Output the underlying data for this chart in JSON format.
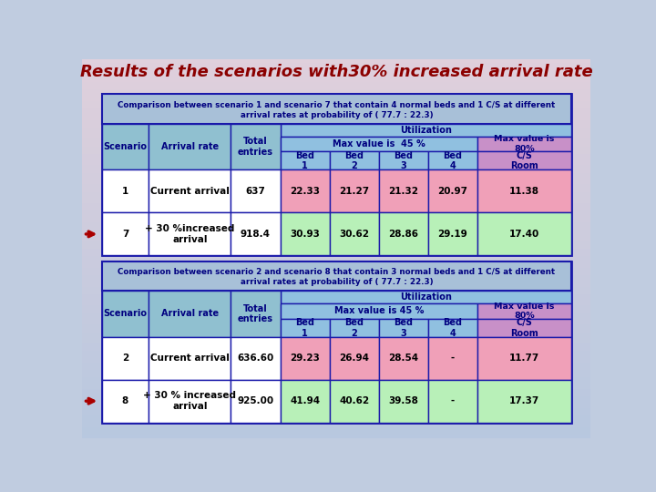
{
  "title": "Results of the scenarios with30% increased arrival rate",
  "title_color": "#8B0000",
  "bg_color_top": "#C8D8E8",
  "bg_color_bot": "#C0C8E0",
  "table1": {
    "header_line1": "Comparison between scenario 1 and scenario 7 that contain 4 normal beds and 1 C/S at different",
    "header_line2": "arrival rates at probability of ( 77.7 : 22.3)",
    "util_header": "Utilization",
    "max45_header": "Max value is  45 %",
    "max80_header": "Max value is\n80%",
    "rows": [
      {
        "scenario": "1",
        "arrival": "Current arrival",
        "total": "637",
        "bed1": "22.33",
        "bed2": "21.27",
        "bed3": "21.32",
        "bed4": "20.97",
        "cs": "11.38",
        "arrow": false,
        "row_type": "pink"
      },
      {
        "scenario": "7",
        "arrival": "+ 30 %increased\narrival",
        "total": "918.4",
        "bed1": "30.93",
        "bed2": "30.62",
        "bed3": "28.86",
        "bed4": "29.19",
        "cs": "17.40",
        "arrow": true,
        "row_type": "green"
      }
    ]
  },
  "table2": {
    "header_line1": "Comparison between scenario 2 and scenario 8 that contain 3 normal beds and 1 C/S at different",
    "header_line2": "arrival rates at probability of ( 77.7 : 22.3)",
    "util_header": "Utilization",
    "max45_header": "Max value is 45 %",
    "max80_header": "Max value is\n80%",
    "rows": [
      {
        "scenario": "2",
        "arrival": "Current arrival",
        "total": "636.60",
        "bed1": "29.23",
        "bed2": "26.94",
        "bed3": "28.54",
        "bed4": "-",
        "cs": "11.77",
        "arrow": false,
        "row_type": "pink"
      },
      {
        "scenario": "8",
        "arrival": "+ 30 % increased\narrival",
        "total": "925.00",
        "bed1": "41.94",
        "bed2": "40.62",
        "bed3": "39.58",
        "bed4": "-",
        "cs": "17.37",
        "arrow": true,
        "row_type": "green"
      }
    ]
  },
  "colors": {
    "border": "#1a1aaa",
    "header_bg": "#a8c0d8",
    "util_bg": "#90c0e0",
    "max45_bg": "#90c0e0",
    "max80_bg": "#c890c8",
    "bed_col_bg": "#90c0e0",
    "cs_col_bg": "#c890c8",
    "scenario_bg": "#90c0d0",
    "arrival_bg": "#90c0d0",
    "total_bg": "#90c0d0",
    "white": "#ffffff",
    "pink": "#f0a0b8",
    "green": "#b8f0b8",
    "arrow_color": "#aa0000",
    "text_navy": "#000080",
    "text_black": "#000000"
  }
}
